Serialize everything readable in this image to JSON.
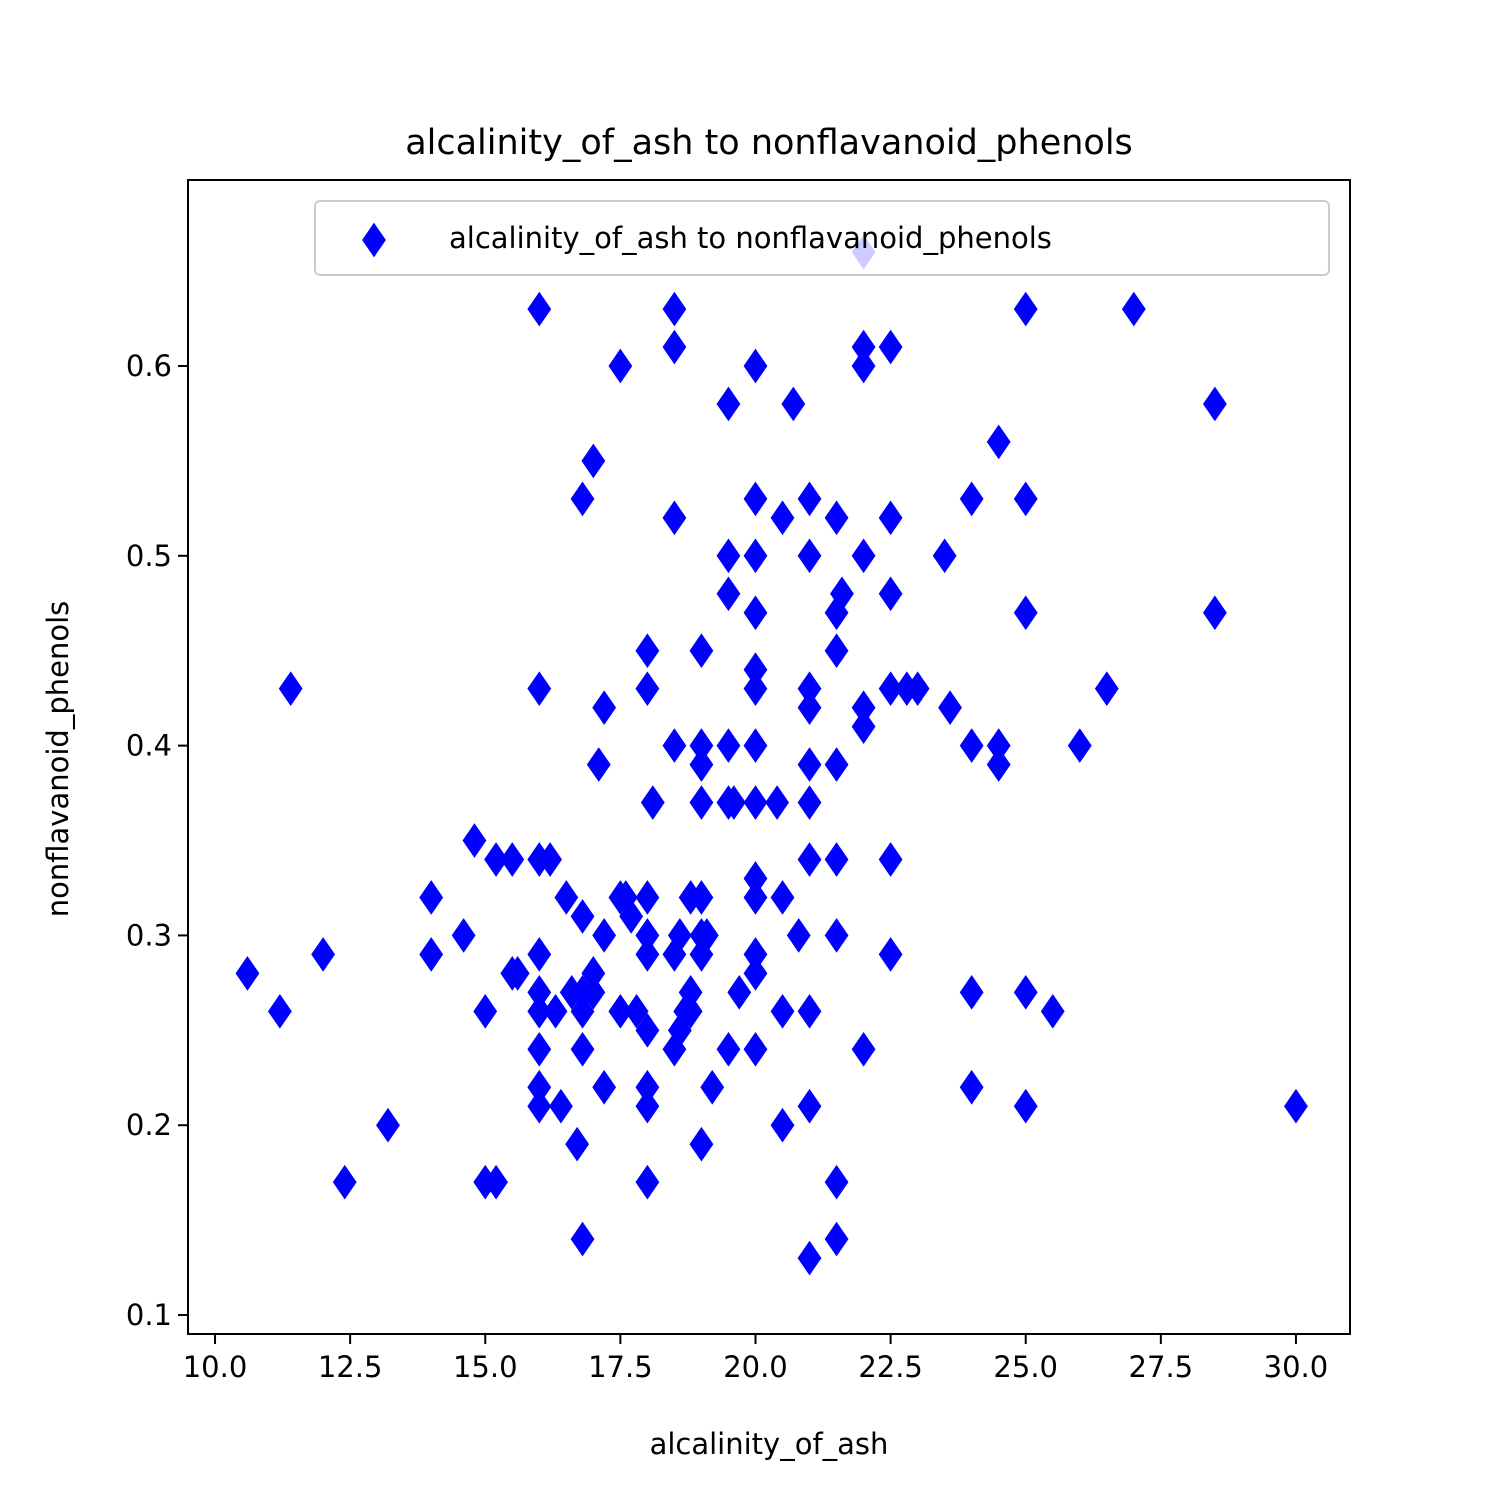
{
  "chart_data": {
    "type": "scatter",
    "title": "alcalinity_of_ash to nonflavanoid_phenols",
    "xlabel": "alcalinity_of_ash",
    "ylabel": "nonflavanoid_phenols",
    "xlim": [
      9.5,
      31.0
    ],
    "ylim": [
      0.09,
      0.698
    ],
    "xticks": [
      10.0,
      12.5,
      15.0,
      17.5,
      20.0,
      22.5,
      25.0,
      27.5,
      30.0
    ],
    "xtick_labels": [
      "10.0",
      "12.5",
      "15.0",
      "17.5",
      "20.0",
      "22.5",
      "25.0",
      "27.5",
      "30.0"
    ],
    "yticks": [
      0.1,
      0.2,
      0.3,
      0.4,
      0.5,
      0.6
    ],
    "ytick_labels": [
      "0.1",
      "0.2",
      "0.3",
      "0.4",
      "0.5",
      "0.6"
    ],
    "grid": false,
    "legend": {
      "position": "top-right"
    },
    "series": [
      {
        "name": "alcalinity_of_ash to nonflavanoid_phenols",
        "color": "#0000ff",
        "marker": "thin-diamond",
        "points": [
          [
            10.6,
            0.28
          ],
          [
            11.2,
            0.26
          ],
          [
            11.4,
            0.43
          ],
          [
            12.0,
            0.29
          ],
          [
            12.4,
            0.17
          ],
          [
            13.2,
            0.2
          ],
          [
            14.0,
            0.32
          ],
          [
            14.0,
            0.29
          ],
          [
            14.6,
            0.3
          ],
          [
            14.8,
            0.35
          ],
          [
            15.0,
            0.26
          ],
          [
            15.0,
            0.17
          ],
          [
            15.2,
            0.34
          ],
          [
            15.2,
            0.17
          ],
          [
            15.5,
            0.34
          ],
          [
            15.5,
            0.28
          ],
          [
            15.6,
            0.28
          ],
          [
            16.0,
            0.63
          ],
          [
            16.0,
            0.43
          ],
          [
            16.0,
            0.34
          ],
          [
            16.0,
            0.29
          ],
          [
            16.0,
            0.27
          ],
          [
            16.0,
            0.26
          ],
          [
            16.0,
            0.24
          ],
          [
            16.0,
            0.22
          ],
          [
            16.0,
            0.21
          ],
          [
            16.2,
            0.34
          ],
          [
            16.3,
            0.26
          ],
          [
            16.4,
            0.21
          ],
          [
            16.5,
            0.32
          ],
          [
            16.6,
            0.27
          ],
          [
            16.7,
            0.19
          ],
          [
            16.8,
            0.53
          ],
          [
            16.8,
            0.31
          ],
          [
            16.8,
            0.27
          ],
          [
            16.8,
            0.26
          ],
          [
            16.8,
            0.24
          ],
          [
            16.8,
            0.14
          ],
          [
            17.0,
            0.55
          ],
          [
            17.0,
            0.28
          ],
          [
            17.0,
            0.27
          ],
          [
            17.1,
            0.39
          ],
          [
            17.2,
            0.42
          ],
          [
            17.2,
            0.3
          ],
          [
            17.2,
            0.22
          ],
          [
            17.5,
            0.6
          ],
          [
            17.5,
            0.32
          ],
          [
            17.5,
            0.26
          ],
          [
            17.6,
            0.32
          ],
          [
            17.7,
            0.31
          ],
          [
            17.8,
            0.26
          ],
          [
            18.0,
            0.45
          ],
          [
            18.0,
            0.43
          ],
          [
            18.0,
            0.32
          ],
          [
            18.0,
            0.3
          ],
          [
            18.0,
            0.29
          ],
          [
            18.0,
            0.25
          ],
          [
            18.0,
            0.22
          ],
          [
            18.0,
            0.21
          ],
          [
            18.0,
            0.17
          ],
          [
            18.1,
            0.37
          ],
          [
            18.5,
            0.63
          ],
          [
            18.5,
            0.61
          ],
          [
            18.5,
            0.52
          ],
          [
            18.5,
            0.4
          ],
          [
            18.5,
            0.29
          ],
          [
            18.5,
            0.24
          ],
          [
            18.6,
            0.3
          ],
          [
            18.6,
            0.25
          ],
          [
            18.7,
            0.26
          ],
          [
            18.8,
            0.32
          ],
          [
            18.8,
            0.27
          ],
          [
            18.8,
            0.26
          ],
          [
            19.0,
            0.45
          ],
          [
            19.0,
            0.4
          ],
          [
            19.0,
            0.39
          ],
          [
            19.0,
            0.37
          ],
          [
            19.0,
            0.32
          ],
          [
            19.0,
            0.3
          ],
          [
            19.0,
            0.29
          ],
          [
            19.0,
            0.19
          ],
          [
            19.1,
            0.3
          ],
          [
            19.2,
            0.22
          ],
          [
            19.5,
            0.58
          ],
          [
            19.5,
            0.5
          ],
          [
            19.5,
            0.48
          ],
          [
            19.5,
            0.4
          ],
          [
            19.5,
            0.37
          ],
          [
            19.5,
            0.24
          ],
          [
            19.6,
            0.37
          ],
          [
            19.7,
            0.27
          ],
          [
            20.0,
            0.6
          ],
          [
            20.0,
            0.53
          ],
          [
            20.0,
            0.5
          ],
          [
            20.0,
            0.47
          ],
          [
            20.0,
            0.44
          ],
          [
            20.0,
            0.43
          ],
          [
            20.0,
            0.4
          ],
          [
            20.0,
            0.37
          ],
          [
            20.0,
            0.33
          ],
          [
            20.0,
            0.32
          ],
          [
            20.0,
            0.29
          ],
          [
            20.0,
            0.28
          ],
          [
            20.0,
            0.24
          ],
          [
            20.4,
            0.37
          ],
          [
            20.5,
            0.52
          ],
          [
            20.5,
            0.32
          ],
          [
            20.5,
            0.26
          ],
          [
            20.5,
            0.2
          ],
          [
            20.7,
            0.58
          ],
          [
            20.8,
            0.3
          ],
          [
            21.0,
            0.53
          ],
          [
            21.0,
            0.5
          ],
          [
            21.0,
            0.43
          ],
          [
            21.0,
            0.42
          ],
          [
            21.0,
            0.39
          ],
          [
            21.0,
            0.37
          ],
          [
            21.0,
            0.34
          ],
          [
            21.0,
            0.26
          ],
          [
            21.0,
            0.21
          ],
          [
            21.0,
            0.13
          ],
          [
            21.5,
            0.52
          ],
          [
            21.5,
            0.47
          ],
          [
            21.5,
            0.45
          ],
          [
            21.5,
            0.39
          ],
          [
            21.5,
            0.34
          ],
          [
            21.5,
            0.3
          ],
          [
            21.5,
            0.17
          ],
          [
            21.5,
            0.14
          ],
          [
            21.6,
            0.48
          ],
          [
            22.0,
            0.66
          ],
          [
            22.0,
            0.61
          ],
          [
            22.0,
            0.6
          ],
          [
            22.0,
            0.5
          ],
          [
            22.0,
            0.42
          ],
          [
            22.0,
            0.41
          ],
          [
            22.0,
            0.24
          ],
          [
            22.5,
            0.61
          ],
          [
            22.5,
            0.52
          ],
          [
            22.5,
            0.48
          ],
          [
            22.5,
            0.43
          ],
          [
            22.5,
            0.34
          ],
          [
            22.5,
            0.29
          ],
          [
            22.8,
            0.43
          ],
          [
            23.0,
            0.43
          ],
          [
            23.5,
            0.5
          ],
          [
            23.6,
            0.42
          ],
          [
            24.0,
            0.53
          ],
          [
            24.0,
            0.4
          ],
          [
            24.0,
            0.27
          ],
          [
            24.0,
            0.22
          ],
          [
            24.5,
            0.56
          ],
          [
            24.5,
            0.4
          ],
          [
            24.5,
            0.39
          ],
          [
            25.0,
            0.63
          ],
          [
            25.0,
            0.53
          ],
          [
            25.0,
            0.47
          ],
          [
            25.0,
            0.27
          ],
          [
            25.0,
            0.21
          ],
          [
            25.5,
            0.26
          ],
          [
            26.0,
            0.4
          ],
          [
            26.5,
            0.43
          ],
          [
            27.0,
            0.63
          ],
          [
            28.5,
            0.58
          ],
          [
            28.5,
            0.47
          ],
          [
            30.0,
            0.21
          ]
        ]
      }
    ]
  }
}
